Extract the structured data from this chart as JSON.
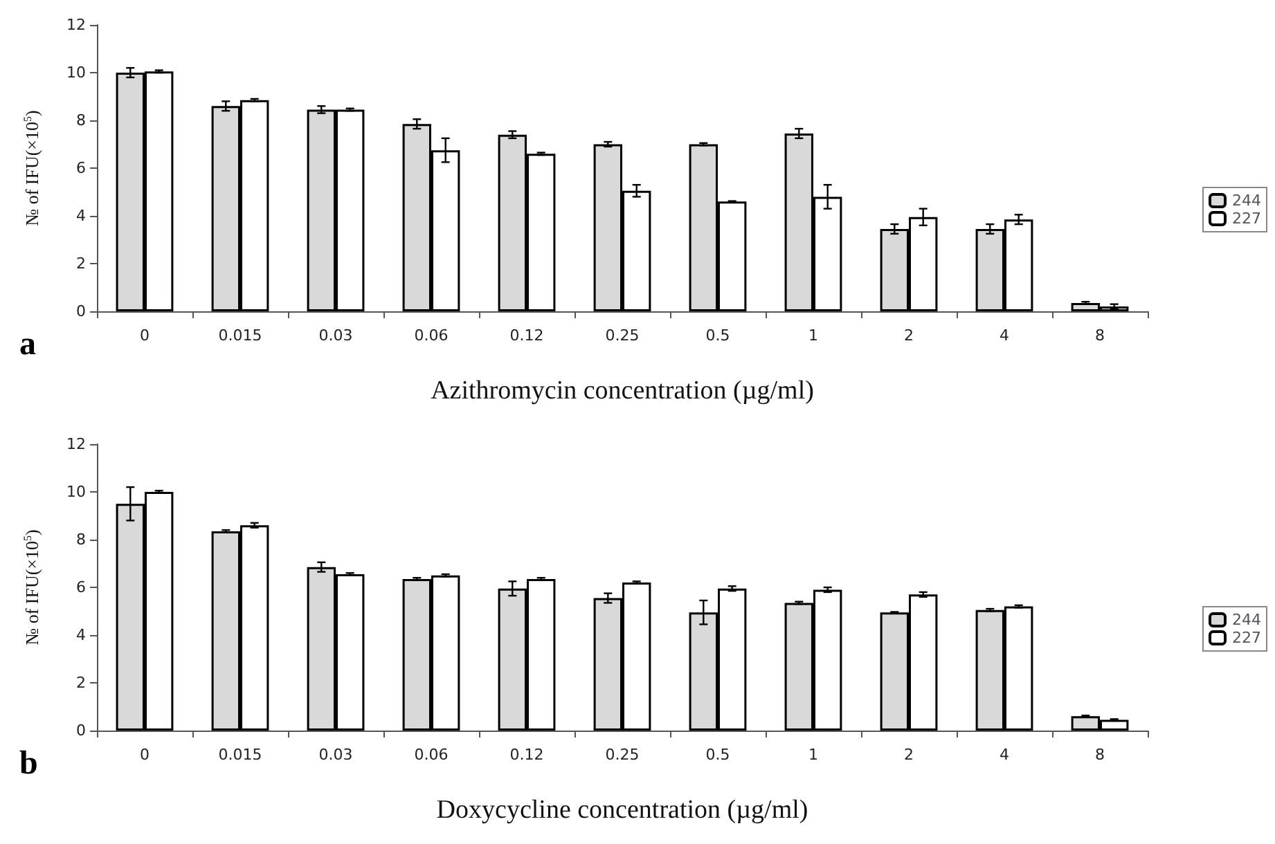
{
  "chart_data": [
    {
      "type": "bar",
      "xlabel": "Azithromycin concentration (µg/ml)",
      "ylabel": "№ of IFU(×10$^{5}$)",
      "annotations": [
        "a"
      ],
      "categories": [
        "0",
        "0.015",
        "0.03",
        "0.06",
        "0.12",
        "0.25",
        "0.5",
        "1",
        "2",
        "4",
        "8"
      ],
      "series": [
        {
          "name": "244",
          "color": "#d9d9d9",
          "values": [
            10.0,
            8.6,
            8.45,
            7.85,
            7.4,
            7.0,
            7.0,
            7.45,
            3.45,
            3.45,
            0.35
          ],
          "errors": [
            0.2,
            0.2,
            0.15,
            0.2,
            0.15,
            0.1,
            0.05,
            0.2,
            0.2,
            0.2,
            0.05
          ]
        },
        {
          "name": "227",
          "color": "#ffffff",
          "values": [
            10.05,
            8.85,
            8.45,
            6.75,
            6.6,
            5.05,
            4.6,
            4.8,
            3.95,
            3.85,
            0.2
          ],
          "errors": [
            0.05,
            0.05,
            0.05,
            0.5,
            0.05,
            0.25,
            0.02,
            0.5,
            0.35,
            0.2,
            0.1
          ]
        }
      ],
      "ylim": [
        0,
        12
      ],
      "yticks": [
        0,
        2,
        4,
        6,
        8,
        10,
        12
      ],
      "grid": false,
      "legend": "right"
    },
    {
      "type": "bar",
      "xlabel": "Doxycycline concentration (µg/ml)",
      "ylabel": "№ of IFU(×10$^{5}$)",
      "annotations": [
        "b"
      ],
      "categories": [
        "0",
        "0.015",
        "0.03",
        "0.06",
        "0.12",
        "0.25",
        "0.5",
        "1",
        "2",
        "4",
        "8"
      ],
      "series": [
        {
          "name": "244",
          "color": "#d9d9d9",
          "values": [
            9.5,
            8.35,
            6.85,
            6.35,
            5.95,
            5.55,
            4.95,
            5.35,
            4.95,
            5.05,
            0.6
          ],
          "errors": [
            0.7,
            0.05,
            0.2,
            0.05,
            0.3,
            0.2,
            0.5,
            0.05,
            0.02,
            0.05,
            0.03
          ]
        },
        {
          "name": "227",
          "color": "#ffffff",
          "values": [
            10.0,
            8.6,
            6.55,
            6.5,
            6.35,
            6.2,
            5.95,
            5.9,
            5.7,
            5.2,
            0.45
          ],
          "errors": [
            0.05,
            0.1,
            0.05,
            0.05,
            0.05,
            0.05,
            0.1,
            0.1,
            0.1,
            0.05,
            0.03
          ]
        }
      ],
      "ylim": [
        0,
        12
      ],
      "yticks": [
        0,
        2,
        4,
        6,
        8,
        10,
        12
      ],
      "grid": false,
      "legend": "right"
    }
  ]
}
